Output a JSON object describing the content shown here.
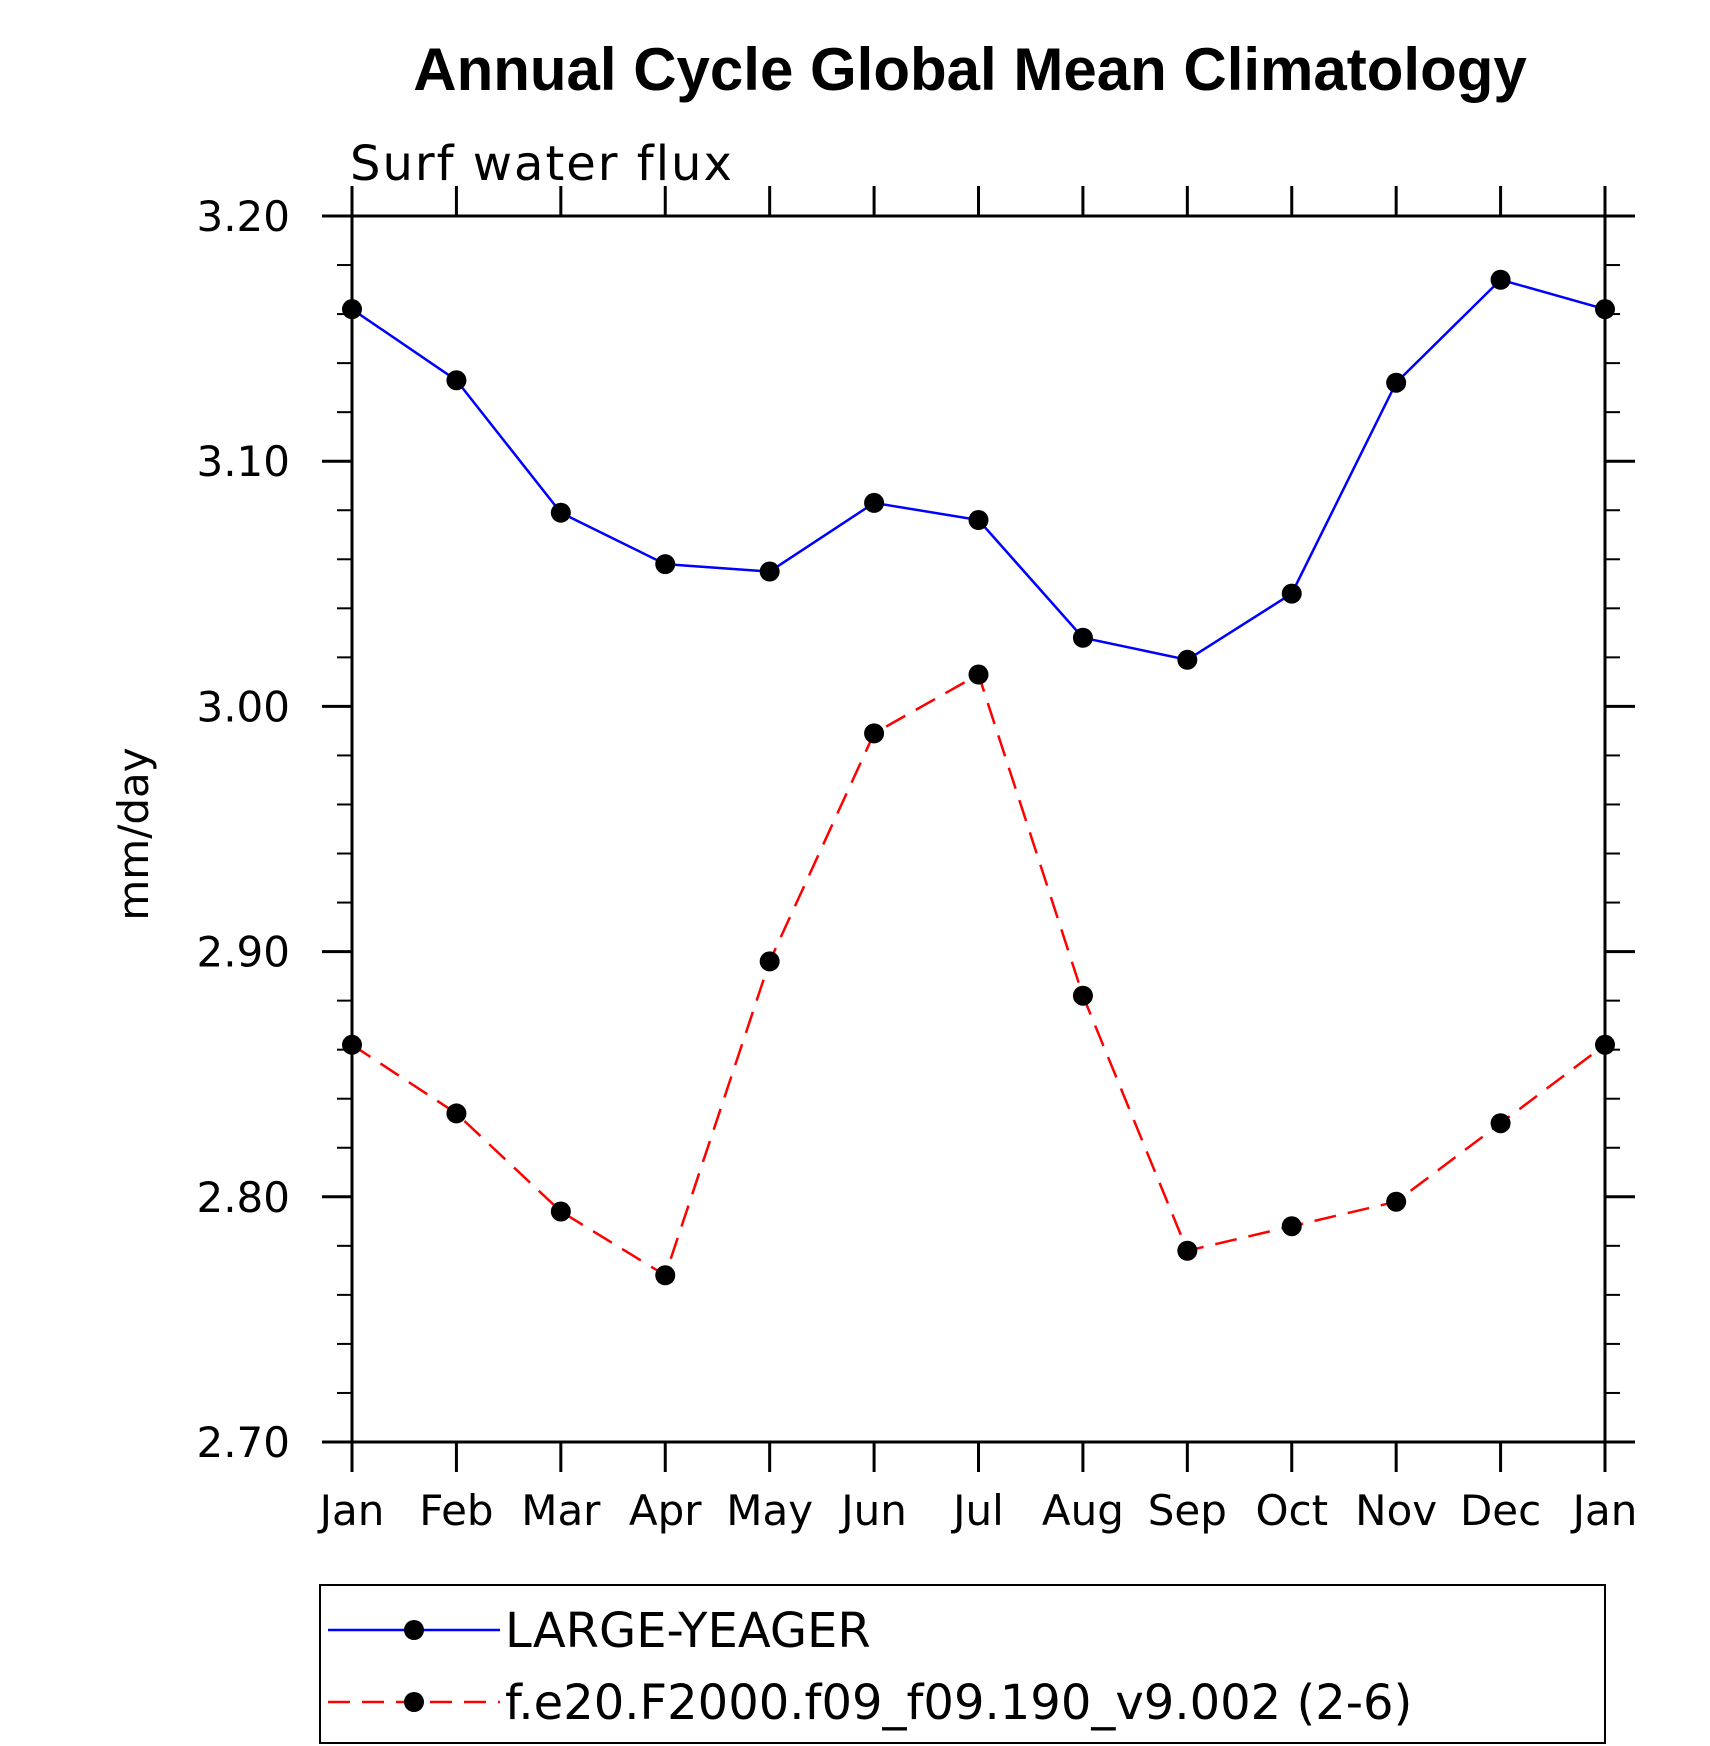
{
  "chart_data": {
    "type": "line",
    "title": "Annual Cycle Global Mean Climatology",
    "subtitle": "Surf water flux",
    "xlabel": "",
    "ylabel": "mm/day",
    "categories": [
      "Jan",
      "Feb",
      "Mar",
      "Apr",
      "May",
      "Jun",
      "Jul",
      "Aug",
      "Sep",
      "Oct",
      "Nov",
      "Dec",
      "Jan"
    ],
    "ylim": [
      2.7,
      3.2
    ],
    "yticks": [
      "2.70",
      "2.80",
      "2.90",
      "3.00",
      "3.10",
      "3.20"
    ],
    "ytick_values": [
      2.7,
      2.8,
      2.9,
      3.0,
      3.1,
      3.2
    ],
    "yminor_step": 0.02,
    "grid": false,
    "legend_position": "bottom",
    "series": [
      {
        "name": "LARGE-YEAGER",
        "color": "#0000ff",
        "line_style": "solid",
        "marker": "filled-circle",
        "marker_color": "#000000",
        "values": [
          3.162,
          3.133,
          3.079,
          3.058,
          3.055,
          3.083,
          3.076,
          3.028,
          3.019,
          3.046,
          3.132,
          3.174,
          3.162
        ]
      },
      {
        "name": "f.e20.F2000.f09_f09.190_v9.002 (2-6)",
        "color": "#ff0000",
        "line_style": "dashed",
        "marker": "filled-circle",
        "marker_color": "#000000",
        "values": [
          2.862,
          2.834,
          2.794,
          2.768,
          2.896,
          2.989,
          3.013,
          2.882,
          2.778,
          2.788,
          2.798,
          2.83,
          2.862
        ]
      }
    ]
  }
}
